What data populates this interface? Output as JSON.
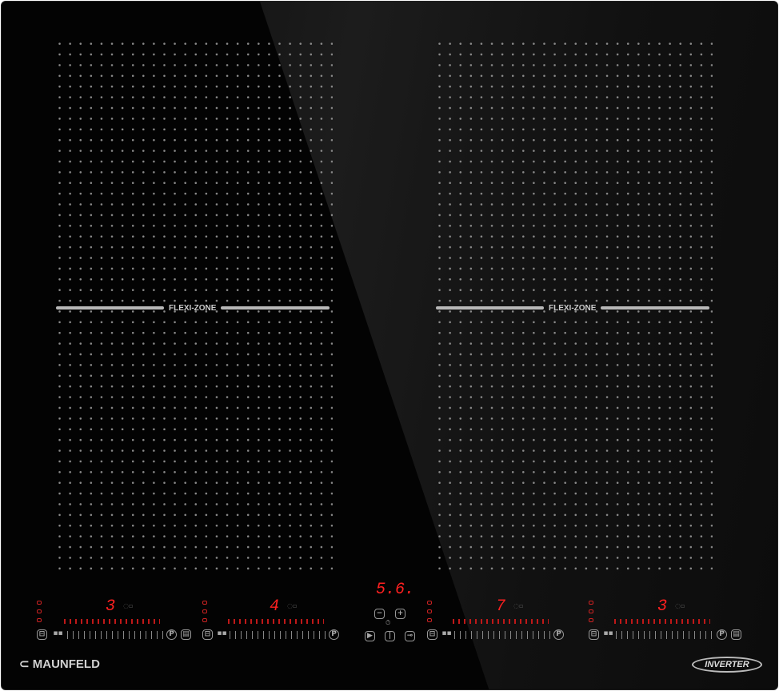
{
  "brand": "MAUNFELD",
  "badge": "INVERTER",
  "zones": [
    {
      "label": "FLEXI-ZONE"
    },
    {
      "label": "FLEXI-ZONE"
    }
  ],
  "controls": [
    {
      "level": "3"
    },
    {
      "level": "4"
    },
    {
      "level": "7"
    },
    {
      "level": "3"
    }
  ],
  "timer": {
    "display": "5.6.",
    "minus": "−",
    "plus": "+"
  },
  "colors": {
    "glass": "#030303",
    "display": "#ff2020",
    "dots": "#8a8a8a"
  },
  "icons": [
    "pan-icon",
    "bridge-icon",
    "pause-icon",
    "power-icon",
    "lock-icon",
    "timer-icon",
    "boost-p-icon"
  ]
}
